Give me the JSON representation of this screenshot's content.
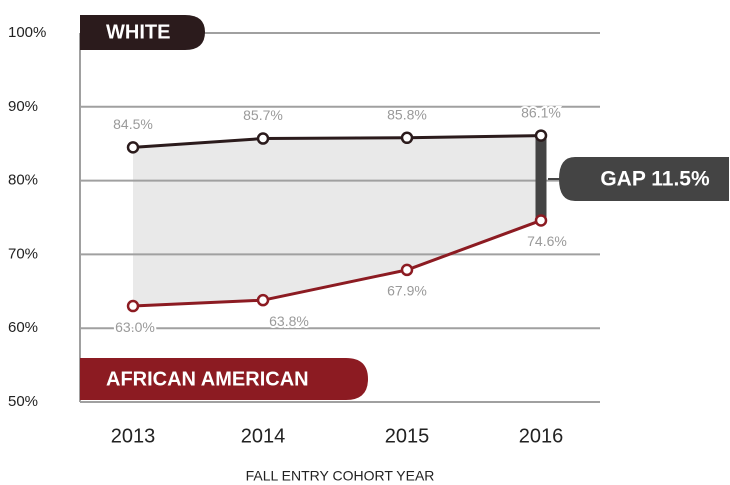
{
  "chart_data": {
    "type": "line",
    "categories": [
      "2013",
      "2014",
      "2015",
      "2016"
    ],
    "series": [
      {
        "name": "WHITE",
        "color": "#2b1b1c",
        "values": [
          84.5,
          85.7,
          85.8,
          86.1
        ],
        "value_labels": [
          "84.5%",
          "85.7%",
          "85.8%",
          "86.1%"
        ]
      },
      {
        "name": "AFRICAN AMERICAN",
        "color": "#8c1b22",
        "values": [
          63.0,
          63.8,
          67.9,
          74.6
        ],
        "value_labels": [
          "63.0%",
          "63.8%",
          "67.9%",
          "74.6%"
        ]
      }
    ],
    "ylim": [
      50,
      100
    ],
    "yticks": [
      {
        "value": 50,
        "label": "50%"
      },
      {
        "value": 60,
        "label": "60%"
      },
      {
        "value": 70,
        "label": "70%"
      },
      {
        "value": 80,
        "label": "80%"
      },
      {
        "value": 90,
        "label": "90%"
      },
      {
        "value": 100,
        "label": "100%"
      }
    ],
    "grid": true,
    "xlabel": "FALL ENTRY COHORT YEAR",
    "annotation": "GAP 11.5%"
  }
}
